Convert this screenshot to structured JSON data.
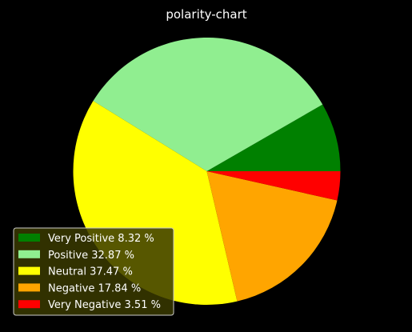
{
  "chart_data": {
    "type": "pie",
    "title": "polarity-chart",
    "start_angle_deg": 0,
    "direction": "counterclockwise",
    "slices": [
      {
        "label": "Very Positive 8.32 %",
        "value": 8.32,
        "color": "#008000"
      },
      {
        "label": "Positive 32.87 %",
        "value": 32.87,
        "color": "#90ee90"
      },
      {
        "label": "Neutral 37.47 %",
        "value": 37.47,
        "color": "#ffff00"
      },
      {
        "label": "Negative 17.84 %",
        "value": 17.84,
        "color": "#ffa500"
      },
      {
        "label": "Very Negative 3.51 %",
        "value": 3.51,
        "color": "#ff0000"
      }
    ],
    "legend": {
      "placement": "lower-left"
    }
  },
  "colors": {
    "background": "#000000",
    "text": "#ffffff",
    "legend_face": "#3a3a00",
    "legend_edge": "#cccccc"
  }
}
